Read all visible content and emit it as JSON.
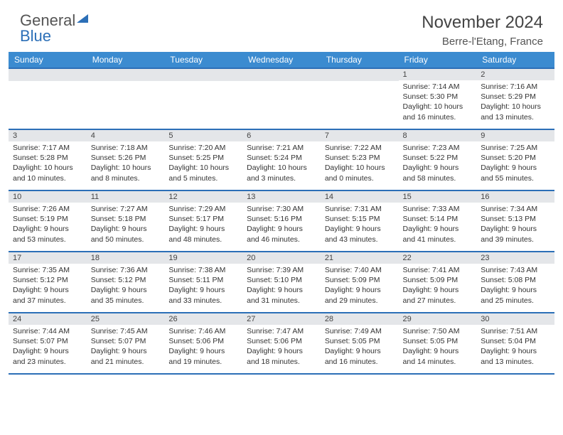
{
  "logo": {
    "part1": "General",
    "part2": "Blue"
  },
  "title": "November 2024",
  "location": "Berre-l'Etang, France",
  "headers": [
    "Sunday",
    "Monday",
    "Tuesday",
    "Wednesday",
    "Thursday",
    "Friday",
    "Saturday"
  ],
  "colors": {
    "header_bg": "#3b8bd0",
    "border": "#2c6fb7",
    "daynum_bg": "#e4e6e9",
    "text": "#333333"
  },
  "weeks": [
    [
      null,
      null,
      null,
      null,
      null,
      {
        "n": "1",
        "sr": "7:14 AM",
        "ss": "5:30 PM",
        "dl": "10 hours and 16 minutes."
      },
      {
        "n": "2",
        "sr": "7:16 AM",
        "ss": "5:29 PM",
        "dl": "10 hours and 13 minutes."
      }
    ],
    [
      {
        "n": "3",
        "sr": "7:17 AM",
        "ss": "5:28 PM",
        "dl": "10 hours and 10 minutes."
      },
      {
        "n": "4",
        "sr": "7:18 AM",
        "ss": "5:26 PM",
        "dl": "10 hours and 8 minutes."
      },
      {
        "n": "5",
        "sr": "7:20 AM",
        "ss": "5:25 PM",
        "dl": "10 hours and 5 minutes."
      },
      {
        "n": "6",
        "sr": "7:21 AM",
        "ss": "5:24 PM",
        "dl": "10 hours and 3 minutes."
      },
      {
        "n": "7",
        "sr": "7:22 AM",
        "ss": "5:23 PM",
        "dl": "10 hours and 0 minutes."
      },
      {
        "n": "8",
        "sr": "7:23 AM",
        "ss": "5:22 PM",
        "dl": "9 hours and 58 minutes."
      },
      {
        "n": "9",
        "sr": "7:25 AM",
        "ss": "5:20 PM",
        "dl": "9 hours and 55 minutes."
      }
    ],
    [
      {
        "n": "10",
        "sr": "7:26 AM",
        "ss": "5:19 PM",
        "dl": "9 hours and 53 minutes."
      },
      {
        "n": "11",
        "sr": "7:27 AM",
        "ss": "5:18 PM",
        "dl": "9 hours and 50 minutes."
      },
      {
        "n": "12",
        "sr": "7:29 AM",
        "ss": "5:17 PM",
        "dl": "9 hours and 48 minutes."
      },
      {
        "n": "13",
        "sr": "7:30 AM",
        "ss": "5:16 PM",
        "dl": "9 hours and 46 minutes."
      },
      {
        "n": "14",
        "sr": "7:31 AM",
        "ss": "5:15 PM",
        "dl": "9 hours and 43 minutes."
      },
      {
        "n": "15",
        "sr": "7:33 AM",
        "ss": "5:14 PM",
        "dl": "9 hours and 41 minutes."
      },
      {
        "n": "16",
        "sr": "7:34 AM",
        "ss": "5:13 PM",
        "dl": "9 hours and 39 minutes."
      }
    ],
    [
      {
        "n": "17",
        "sr": "7:35 AM",
        "ss": "5:12 PM",
        "dl": "9 hours and 37 minutes."
      },
      {
        "n": "18",
        "sr": "7:36 AM",
        "ss": "5:12 PM",
        "dl": "9 hours and 35 minutes."
      },
      {
        "n": "19",
        "sr": "7:38 AM",
        "ss": "5:11 PM",
        "dl": "9 hours and 33 minutes."
      },
      {
        "n": "20",
        "sr": "7:39 AM",
        "ss": "5:10 PM",
        "dl": "9 hours and 31 minutes."
      },
      {
        "n": "21",
        "sr": "7:40 AM",
        "ss": "5:09 PM",
        "dl": "9 hours and 29 minutes."
      },
      {
        "n": "22",
        "sr": "7:41 AM",
        "ss": "5:09 PM",
        "dl": "9 hours and 27 minutes."
      },
      {
        "n": "23",
        "sr": "7:43 AM",
        "ss": "5:08 PM",
        "dl": "9 hours and 25 minutes."
      }
    ],
    [
      {
        "n": "24",
        "sr": "7:44 AM",
        "ss": "5:07 PM",
        "dl": "9 hours and 23 minutes."
      },
      {
        "n": "25",
        "sr": "7:45 AM",
        "ss": "5:07 PM",
        "dl": "9 hours and 21 minutes."
      },
      {
        "n": "26",
        "sr": "7:46 AM",
        "ss": "5:06 PM",
        "dl": "9 hours and 19 minutes."
      },
      {
        "n": "27",
        "sr": "7:47 AM",
        "ss": "5:06 PM",
        "dl": "9 hours and 18 minutes."
      },
      {
        "n": "28",
        "sr": "7:49 AM",
        "ss": "5:05 PM",
        "dl": "9 hours and 16 minutes."
      },
      {
        "n": "29",
        "sr": "7:50 AM",
        "ss": "5:05 PM",
        "dl": "9 hours and 14 minutes."
      },
      {
        "n": "30",
        "sr": "7:51 AM",
        "ss": "5:04 PM",
        "dl": "9 hours and 13 minutes."
      }
    ]
  ]
}
